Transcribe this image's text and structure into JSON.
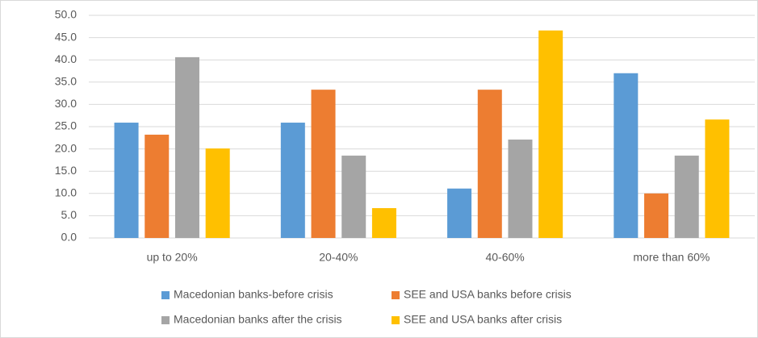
{
  "chart_data": {
    "type": "bar",
    "categories": [
      "up to 20%",
      "20-40%",
      "40-60%",
      "more than 60%"
    ],
    "series": [
      {
        "name": "Macedonian banks-before crisis",
        "color": "#5b9bd5",
        "values": [
          25.9,
          25.9,
          11.1,
          37.0
        ]
      },
      {
        "name": "SEE and USA banks before crisis",
        "color": "#ed7d31",
        "values": [
          23.2,
          33.3,
          33.3,
          10.0
        ]
      },
      {
        "name": "Macedonian banks after the crisis",
        "color": "#a5a5a5",
        "values": [
          40.6,
          18.5,
          22.1,
          18.5
        ]
      },
      {
        "name": "SEE and USA banks after crisis",
        "color": "#ffc000",
        "values": [
          20.1,
          6.7,
          46.6,
          26.6
        ]
      }
    ],
    "ylim": [
      0,
      50
    ],
    "yticks": [
      {
        "value": 0,
        "label": "0.0"
      },
      {
        "value": 5,
        "label": "5.0"
      },
      {
        "value": 10,
        "label": "10.0"
      },
      {
        "value": 15,
        "label": "15.0"
      },
      {
        "value": 20,
        "label": "20.0"
      },
      {
        "value": 25,
        "label": "25.0"
      },
      {
        "value": 30,
        "label": "30.0"
      },
      {
        "value": 35,
        "label": "35.0"
      },
      {
        "value": 40,
        "label": "40.0"
      },
      {
        "value": 45,
        "label": "45.0"
      },
      {
        "value": 50,
        "label": "50.0"
      }
    ],
    "grid": true,
    "legend": "bottom"
  }
}
